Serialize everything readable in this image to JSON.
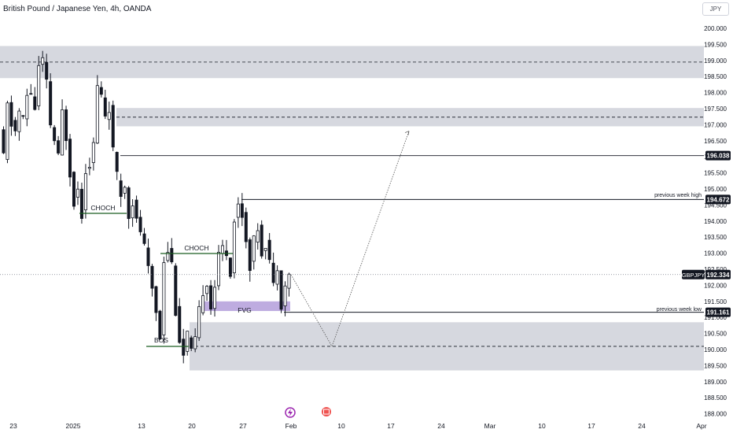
{
  "header": {
    "title": "British Pound / Japanese Yen, 4h, OANDA",
    "currency": "JPY"
  },
  "price_axis": {
    "ticks": [
      "200.000",
      "199.500",
      "199.000",
      "198.500",
      "198.000",
      "197.500",
      "197.000",
      "196.500",
      "196.000",
      "195.500",
      "195.000",
      "194.500",
      "194.000",
      "193.500",
      "193.000",
      "192.500",
      "192.000",
      "191.500",
      "191.000",
      "190.500",
      "190.000",
      "189.500",
      "189.000",
      "188.500",
      "188.000"
    ],
    "ticks_values": [
      200,
      199.5,
      199,
      198.5,
      198,
      197.5,
      197,
      196.5,
      196,
      195.5,
      195,
      194.5,
      194,
      193.5,
      193,
      192.5,
      192,
      191.5,
      191,
      190.5,
      190,
      189.5,
      189,
      188.5,
      188
    ],
    "markers": [
      {
        "label": "196.038",
        "value": 196.038
      },
      {
        "label": "194.672",
        "value": 194.672
      },
      {
        "label": "192.334",
        "value": 192.334
      },
      {
        "label": "191.161",
        "value": 191.161
      }
    ],
    "symbol_tag": "GBPJPY"
  },
  "time_axis": {
    "labels": [
      "23",
      "2025",
      "13",
      "20",
      "27",
      "Feb",
      "10",
      "17",
      "24",
      "Mar",
      "10",
      "17",
      "24",
      "Apr"
    ]
  },
  "annotations": {
    "choch_1": "CHOCH",
    "choch_2": "CHOCH",
    "bos": "BOS",
    "fvg": "FVG",
    "prev_week_high": "previous week high",
    "prev_week_low": "previous week low"
  },
  "zones": [
    {
      "name": "supply-zone-top",
      "from": 198.45,
      "to": 199.45
    },
    {
      "name": "supply-zone-mid",
      "from": 196.95,
      "to": 197.52
    },
    {
      "name": "demand-zone",
      "from": 189.35,
      "to": 190.85
    }
  ],
  "colors": {
    "up": "#26a69a",
    "zone": "#d1d4dc",
    "fvg": "#b39ddb",
    "choch_line": "#1b5e20",
    "candle": "#131722"
  },
  "chart_data": {
    "type": "candlestick",
    "symbol": "GBPJPY",
    "timeframe": "4h",
    "ylim": [
      188.0,
      200.3
    ],
    "price_path": [
      196.8,
      196.0,
      197.6,
      197.0,
      196.8,
      197.4,
      197.2,
      197.9,
      198.0,
      197.5,
      198.8,
      199.0,
      198.3,
      197.0,
      196.5,
      196.0,
      197.4,
      196.6,
      195.5,
      194.6,
      195.0,
      194.2,
      195.6,
      195.8,
      196.4,
      198.2,
      197.9,
      197.3,
      197.5,
      196.2,
      195.4,
      194.8,
      195.1,
      194.2,
      194.6,
      194.0,
      193.7,
      193.2,
      192.5,
      191.9,
      191.2,
      190.4,
      192.8,
      193.1,
      192.7,
      191.2,
      190.3,
      189.8,
      190.5,
      189.9,
      190.3,
      191.2,
      191.8,
      192.1,
      191.3,
      192.0,
      192.9,
      193.2,
      193.0,
      192.4,
      194.0,
      194.5,
      194.2,
      193.4,
      192.6,
      193.4,
      193.8,
      193.0,
      193.3,
      192.8,
      192.0,
      192.6,
      191.4,
      192.0,
      192.3
    ],
    "projection": [
      192.334,
      190.1,
      196.8
    ]
  }
}
